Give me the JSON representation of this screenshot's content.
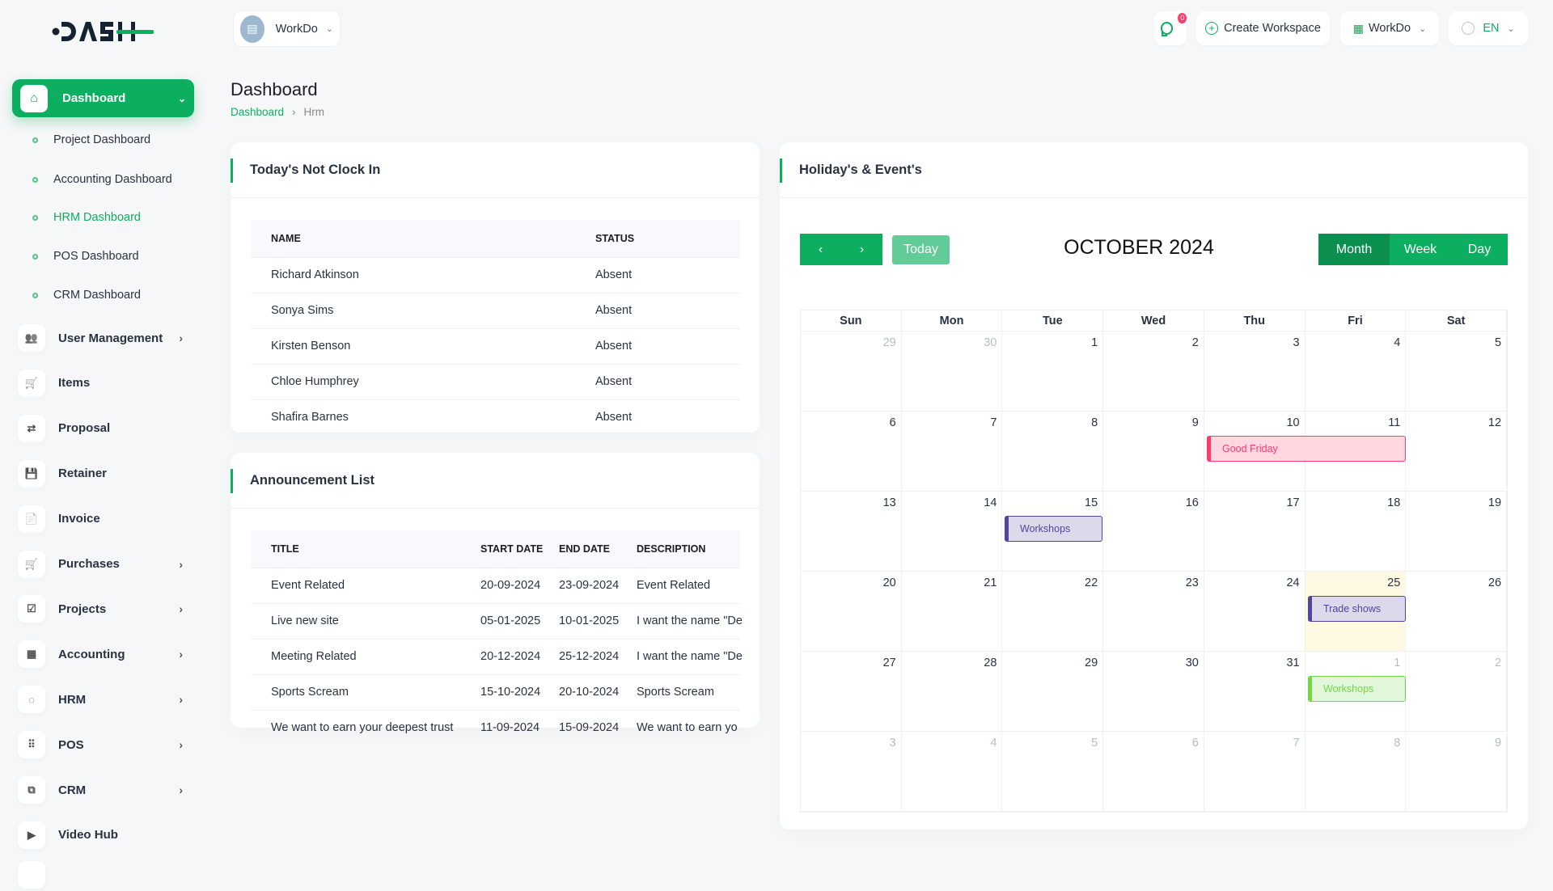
{
  "logo": "DASH",
  "workspace": {
    "name": "WorkDo"
  },
  "topbar": {
    "notifications_count": "0",
    "create_workspace": "Create Workspace",
    "workspace_menu": "WorkDo",
    "language": "EN"
  },
  "sidebar": {
    "active": {
      "label": "Dashboard",
      "icon": "home-icon"
    },
    "sub_items": [
      {
        "label": "Project Dashboard"
      },
      {
        "label": "Accounting Dashboard"
      },
      {
        "label": "HRM Dashboard",
        "active": true
      },
      {
        "label": "POS Dashboard"
      },
      {
        "label": "CRM Dashboard"
      }
    ],
    "items": [
      {
        "label": "User Management",
        "icon": "users-icon",
        "expandable": true
      },
      {
        "label": "Items",
        "icon": "cart-icon",
        "expandable": false
      },
      {
        "label": "Proposal",
        "icon": "proposal-icon",
        "expandable": false
      },
      {
        "label": "Retainer",
        "icon": "save-icon",
        "expandable": false
      },
      {
        "label": "Invoice",
        "icon": "file-icon",
        "expandable": false
      },
      {
        "label": "Purchases",
        "icon": "cart-icon",
        "expandable": true
      },
      {
        "label": "Projects",
        "icon": "checkbox-icon",
        "expandable": true
      },
      {
        "label": "Accounting",
        "icon": "apps-icon",
        "expandable": true
      },
      {
        "label": "HRM",
        "icon": "hrm-icon",
        "expandable": true
      },
      {
        "label": "POS",
        "icon": "grid-dots-icon",
        "expandable": true
      },
      {
        "label": "CRM",
        "icon": "crm-icon",
        "expandable": true
      },
      {
        "label": "Video Hub",
        "icon": "video-icon",
        "expandable": false
      }
    ]
  },
  "page": {
    "title": "Dashboard",
    "breadcrumb": [
      "Dashboard",
      "Hrm"
    ]
  },
  "not_clock_in": {
    "title": "Today's Not Clock In",
    "columns": [
      "NAME",
      "STATUS"
    ],
    "rows": [
      [
        "Richard Atkinson",
        "Absent"
      ],
      [
        "Sonya Sims",
        "Absent"
      ],
      [
        "Kirsten Benson",
        "Absent"
      ],
      [
        "Chloe Humphrey",
        "Absent"
      ],
      [
        "Shafira Barnes",
        "Absent"
      ]
    ]
  },
  "announcements": {
    "title": "Announcement List",
    "columns": [
      "TITLE",
      "START DATE",
      "END DATE",
      "DESCRIPTION"
    ],
    "rows": [
      [
        "Event Related",
        "20-09-2024",
        "23-09-2024",
        "Event Related"
      ],
      [
        "Live new site",
        "05-01-2025",
        "10-01-2025",
        "I want the name \"De"
      ],
      [
        "Meeting Related",
        "20-12-2024",
        "25-12-2024",
        "I want the name \"De"
      ],
      [
        "Sports Scream",
        "15-10-2024",
        "20-10-2024",
        "Sports Scream"
      ],
      [
        "We want to earn your deepest trust",
        "11-09-2024",
        "15-09-2024",
        "We want to earn yo"
      ]
    ]
  },
  "calendar": {
    "title": "Holiday's & Event's",
    "month_label": "OCTOBER 2024",
    "today_label": "Today",
    "views": [
      "Month",
      "Week",
      "Day"
    ],
    "active_view": "Month",
    "weekdays": [
      "Sun",
      "Mon",
      "Tue",
      "Wed",
      "Thu",
      "Fri",
      "Sat"
    ],
    "weeks": [
      [
        29,
        30,
        1,
        2,
        3,
        4,
        5
      ],
      [
        6,
        7,
        8,
        9,
        10,
        11,
        12
      ],
      [
        13,
        14,
        15,
        16,
        17,
        18,
        19
      ],
      [
        20,
        21,
        22,
        23,
        24,
        25,
        26
      ],
      [
        27,
        28,
        29,
        30,
        31,
        1,
        2
      ],
      [
        3,
        4,
        5,
        6,
        7,
        8,
        9
      ]
    ],
    "today": {
      "week": 3,
      "day": 5
    },
    "events": [
      {
        "title": "Good Friday",
        "week": 1,
        "start_day": 4,
        "span": 2,
        "color": "#ff3a6e",
        "bg": "#ffd7e0"
      },
      {
        "title": "Workshops",
        "week": 2,
        "start_day": 2,
        "span": 1,
        "color": "#51459d",
        "bg": "#dcd9ea"
      },
      {
        "title": "Trade shows",
        "week": 3,
        "start_day": 5,
        "span": 1,
        "color": "#51459d",
        "bg": "#dcd9ea"
      },
      {
        "title": "Workshops",
        "week": 4,
        "start_day": 5,
        "span": 1,
        "color": "#6fd943",
        "bg": "#e2f7d9"
      }
    ]
  },
  "colors": {
    "accent": "#0caf60",
    "accent_dark": "#0a8f4f"
  }
}
